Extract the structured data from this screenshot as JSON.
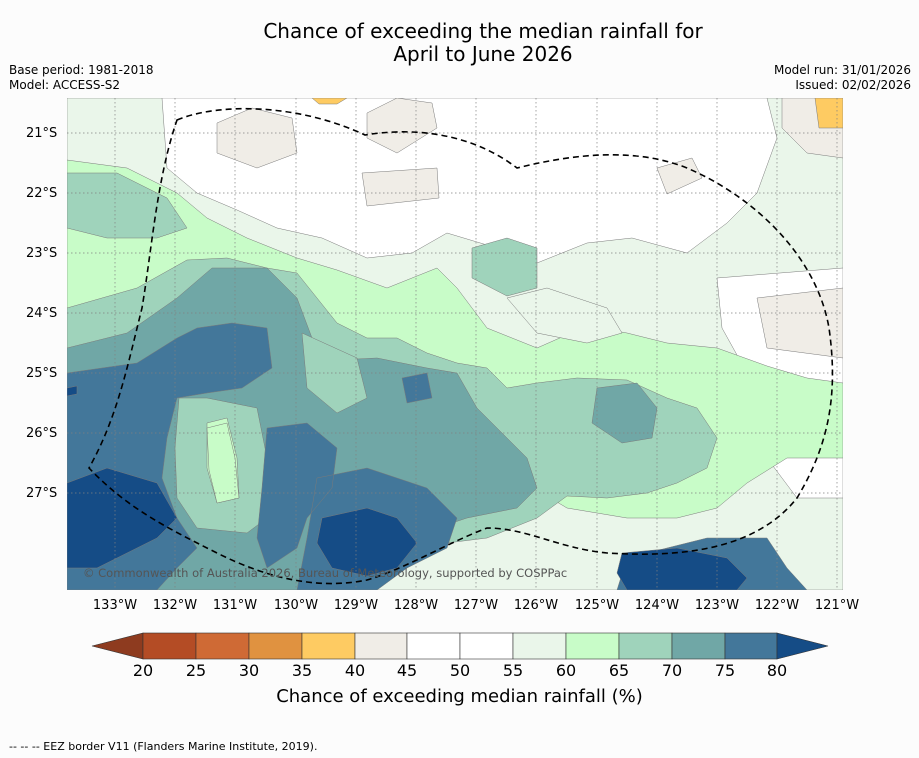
{
  "title_line1": "Chance of exceeding the median rainfall for",
  "title_line2": "April to June 2026",
  "base_period": "Base period: 1981-2018",
  "model": "Model: ACCESS-S2",
  "model_run": "Model run: 31/01/2026",
  "issued": "Issued: 02/02/2026",
  "lat_labels": [
    "21°S",
    "22°S",
    "23°S",
    "24°S",
    "25°S",
    "26°S",
    "27°S"
  ],
  "lon_labels": [
    "133°W",
    "132°W",
    "131°W",
    "130°W",
    "129°W",
    "128°W",
    "127°W",
    "126°W",
    "125°W",
    "124°W",
    "123°W",
    "122°W",
    "121°W"
  ],
  "copyright": "© Commonwealth of Australia 2026, Bureau of Meteorology, supported by COSPPac",
  "colorbar": {
    "label": "Chance of exceeding median rainfall (%)",
    "ticks": [
      "20",
      "25",
      "30",
      "35",
      "40",
      "45",
      "50",
      "55",
      "60",
      "65",
      "70",
      "75",
      "80"
    ],
    "colors": {
      "lt20": "#8e3b1f",
      "b20_25": "#b44c25",
      "b25_30": "#cf6a35",
      "b30_35": "#e09240",
      "b35_40": "#fecb62",
      "b40_45": "#f0ede7",
      "b45_50": "#ffffff",
      "b50_55": "#ffffff",
      "b55_60": "#eaf6ea",
      "b60_65": "#c8fcc8",
      "b65_70": "#9fd3bb",
      "b70_75": "#70a7a6",
      "b75_80": "#43779a",
      "gt80": "#154c86"
    }
  },
  "footer": "--  --  -- EEZ border V11 (Flanders Marine Institute, 2019)."
}
